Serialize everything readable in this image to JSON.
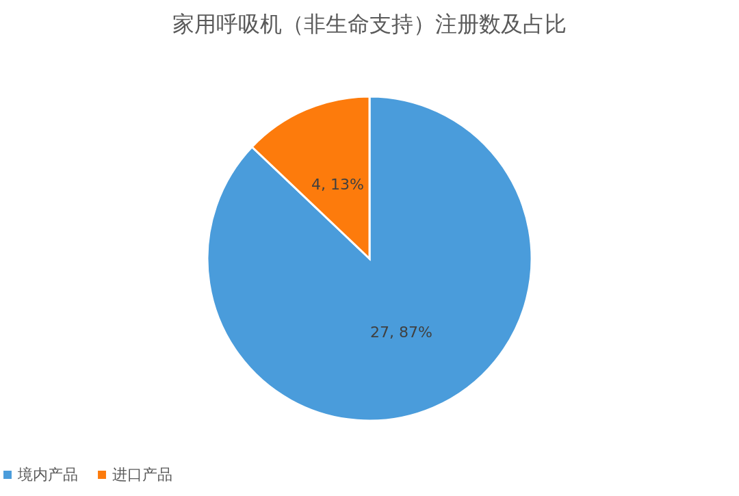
{
  "chart_data": {
    "type": "pie",
    "title": "家用呼吸机（非生命支持）注册数及占比",
    "categories": [
      "境内产品",
      "进口产品"
    ],
    "values": [
      27,
      4
    ],
    "colors": [
      "#4a9cdb",
      "#fd7b0c"
    ],
    "value_labels": [
      "27, 87%",
      "4, 13%"
    ],
    "legend": "bottom"
  }
}
